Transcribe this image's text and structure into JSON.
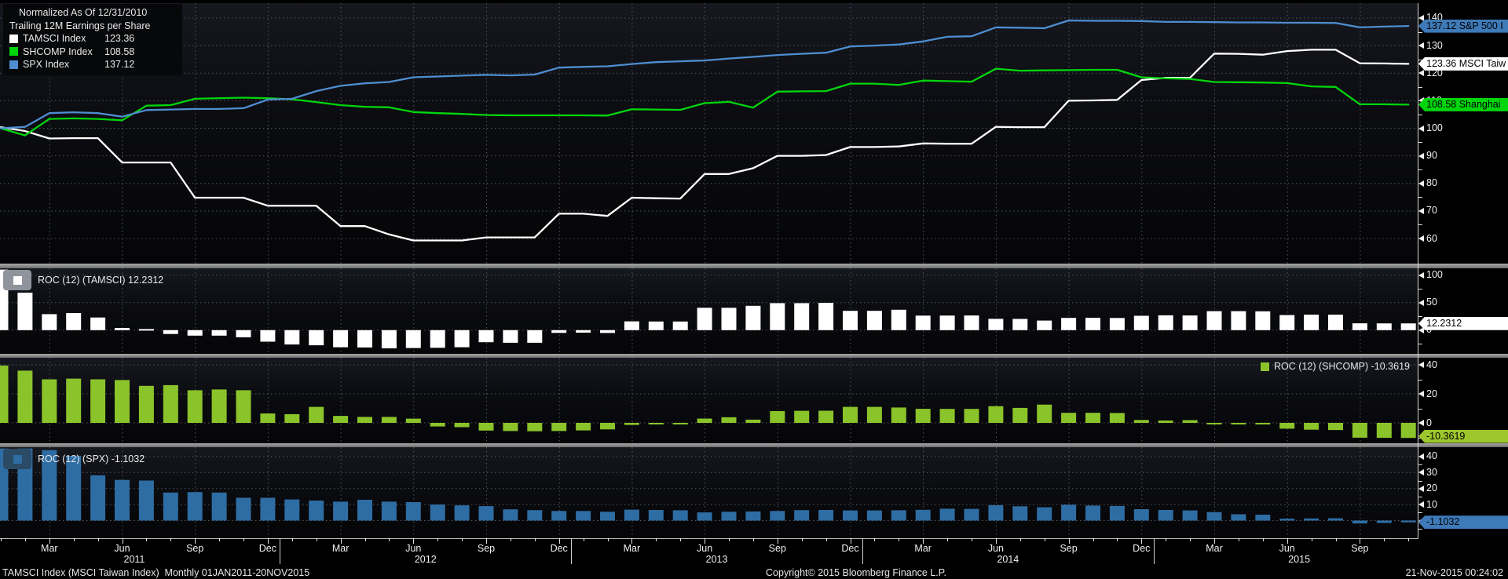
{
  "legend": {
    "title": "Normalized As Of 12/31/2010",
    "subtitle": "Trailing 12M Earnings per Share",
    "items": [
      {
        "name": "TAMSCI Index",
        "value": "123.36",
        "color": "#ffffff"
      },
      {
        "name": "SHCOMP Index",
        "value": "108.58",
        "color": "#00d60b"
      },
      {
        "name": "SPX Index",
        "value": "137.12",
        "color": "#4e8ed0"
      }
    ]
  },
  "panel_legends": [
    {
      "label": "ROC (12) (TAMSCI) 12.2312",
      "color": "#ffffff",
      "chip": "#8e939c"
    },
    {
      "label": "ROC (12) (SHCOMP) -10.3619",
      "color": "#8bc32a",
      "chip": ""
    },
    {
      "label": "ROC (12) (SPX) -1.1032",
      "color": "#2e6da4",
      "chip": "#2b4a66"
    }
  ],
  "x_axis": {
    "quarter_cycle": [
      "Mar",
      "Jun",
      "Sep",
      "Dec"
    ],
    "years": [
      "2011",
      "2012",
      "2013",
      "2014",
      "2015"
    ],
    "range": "Monthly 01JAN2011 - 20NOV2015"
  },
  "status_bar": {
    "left": "TAMSCI Index (MSCI Taiwan Index)  Monthly 01JAN2011-20NOV2015",
    "center": "Copyright© 2015 Bloomberg Finance L.P.",
    "right": "21-Nov-2015 00:24:02"
  },
  "colors": {
    "tamsci_line": "#ffffff",
    "shcomp_line": "#00d60b",
    "spx_line": "#4e8ed0",
    "shcomp_bar": "#8bc32a",
    "spx_bar": "#2e6da4",
    "badge_spx": "#3f7ab8",
    "badge_shcomp": "#00d60b",
    "badge_shcomp_roc": "#9dc62d",
    "grid": "#53555f"
  },
  "chart_data": [
    {
      "type": "line",
      "title": "Normalized As Of 12/31/2010",
      "subtitle": "Trailing 12M Earnings per Share",
      "x_monthly": {
        "start": "2011-01",
        "end": "2015-11",
        "points": 59
      },
      "yticks": [
        140,
        130,
        120,
        110,
        100,
        90,
        80,
        70,
        60
      ],
      "yticks_minor": [
        135,
        125,
        115,
        105,
        95,
        85,
        75,
        65
      ],
      "ylim": [
        51,
        145
      ],
      "series": [
        {
          "name": "TAMSCI Index",
          "color": "#ffffff",
          "last": 123.36,
          "values": [
            100.4,
            99,
            96.3,
            96.4,
            96.4,
            87.6,
            87.6,
            87.6,
            74.8,
            74.8,
            74.8,
            71.9,
            71.9,
            71.9,
            64.5,
            64.5,
            61.5,
            59.3,
            59.3,
            59.3,
            60.4,
            60.4,
            60.4,
            69,
            69,
            68.2,
            74.8,
            74.6,
            74.5,
            83.4,
            83.4,
            85.5,
            90,
            90,
            90.3,
            93.2,
            93.2,
            93.4,
            94.5,
            94.4,
            94.4,
            100.5,
            100.4,
            100.4,
            110,
            110.1,
            110.3,
            117.5,
            118.3,
            118.3,
            127.1,
            127,
            126.7,
            128,
            128.5,
            128.5,
            123.6,
            123.5,
            123.36
          ]
        },
        {
          "name": "SHCOMP Index",
          "color": "#00d60b",
          "last": 108.58,
          "values": [
            100,
            97.4,
            103.4,
            103.6,
            103.4,
            102.9,
            108.2,
            108.4,
            110.7,
            110.9,
            111.1,
            110.9,
            110.5,
            109.5,
            108.4,
            107.8,
            107.6,
            105.9,
            105.5,
            105.2,
            104.8,
            104.7,
            104.7,
            104.7,
            104.7,
            104.6,
            106.9,
            106.8,
            106.7,
            109.1,
            109.6,
            107.5,
            113.3,
            113.4,
            113.5,
            116.2,
            116.2,
            115.7,
            117.3,
            117.1,
            116.9,
            121.6,
            120.9,
            121,
            121.1,
            121.2,
            121.2,
            118.5,
            118.1,
            117.9,
            116.8,
            116.7,
            116.6,
            116.4,
            115.2,
            115,
            108.7,
            108.7,
            108.58
          ]
        },
        {
          "name": "SPX Index",
          "color": "#4e8ed0",
          "last": 137.12,
          "values": [
            100,
            100.5,
            105.5,
            105.8,
            105.5,
            104.2,
            106.6,
            106.8,
            107,
            107,
            107.3,
            110.4,
            110.7,
            113.5,
            115.4,
            116.3,
            116.8,
            118.5,
            118.8,
            119.1,
            119.4,
            119.2,
            119.5,
            122,
            122.3,
            122.5,
            123.3,
            124,
            124.3,
            124.6,
            125.3,
            125.9,
            126.6,
            127,
            127.4,
            129.7,
            130,
            130.4,
            131.5,
            133.2,
            133.4,
            136.6,
            136.5,
            136.3,
            139.1,
            139,
            139,
            138.9,
            138.6,
            138.6,
            138.5,
            138.4,
            138.4,
            138.3,
            138.3,
            138.2,
            136.6,
            136.9,
            137.12
          ]
        }
      ],
      "badges": [
        {
          "value": 137.12,
          "label": "137.12 S&P 500 I",
          "bg": "#3f7ab8"
        },
        {
          "value": 123.36,
          "label": "123.36 MSCI Taiw",
          "bg": "#ffffff"
        },
        {
          "value": 108.58,
          "label": "108.58 Shanghai",
          "bg": "#00d60b"
        }
      ]
    },
    {
      "type": "bar",
      "name": "ROC (12) (TAMSCI)",
      "color": "#ffffff",
      "yticks": [
        100,
        50,
        0
      ],
      "yticks_minor": [
        75,
        25,
        -25
      ],
      "badge": {
        "value": 12.2312,
        "label": "12.2312",
        "bg": "#ffffff"
      },
      "values": [
        110,
        68,
        29,
        31,
        23,
        4,
        2,
        -7,
        -10,
        -10,
        -13,
        -21,
        -26,
        -27.5,
        -31,
        -31.5,
        -33,
        -32.5,
        -32,
        -31,
        -22,
        -23,
        -23,
        -5,
        -4.5,
        -5.1,
        16,
        15.7,
        15.6,
        40.6,
        40.6,
        44.2,
        49,
        49,
        49.5,
        35.1,
        35.1,
        37,
        26.3,
        26.5,
        26.7,
        20.5,
        20.4,
        17.4,
        22.2,
        22.3,
        22.1,
        26.1,
        26.9,
        26.7,
        34.5,
        34.5,
        34.2,
        27.4,
        28,
        28,
        12.4,
        12.3,
        12.2312
      ]
    },
    {
      "type": "bar",
      "name": "ROC (12) (SHCOMP)",
      "color": "#8bc32a",
      "yticks": [
        40,
        20,
        0
      ],
      "yticks_minor": [
        30,
        10,
        -10
      ],
      "badge": {
        "value": -10.3619,
        "label": "-10.3619",
        "bg": "#9dc62d"
      },
      "values": [
        39.5,
        36,
        30,
        30.5,
        30,
        29.5,
        25.5,
        26,
        22.5,
        23,
        22.5,
        6.5,
        6,
        11,
        4.8,
        4.1,
        4.1,
        2.9,
        -2.5,
        -3,
        -5.3,
        -5.6,
        -5.8,
        -5.6,
        -5.2,
        -4.5,
        -1.4,
        -0.9,
        -0.8,
        3,
        3.9,
        2.2,
        8.1,
        8.3,
        8.4,
        11,
        11,
        10.6,
        9.7,
        9.6,
        9.6,
        11.5,
        10.3,
        12.6,
        6.9,
        6.9,
        6.8,
        2,
        1.6,
        1.9,
        -0.4,
        -0.3,
        -0.2,
        -4,
        -4.7,
        -4.9,
        -10.2,
        -10.3,
        -10.3619
      ]
    },
    {
      "type": "bar",
      "name": "ROC (12) (SPX)",
      "color": "#2e6da4",
      "yticks": [
        40,
        30,
        20,
        10,
        0
      ],
      "yticks_minor": [
        45,
        35,
        25,
        15,
        5,
        -5
      ],
      "badge": {
        "value": -1.1032,
        "label": "-1.1032",
        "bg": "#3f7ab8"
      },
      "values": [
        45,
        45,
        44,
        40.5,
        28.3,
        25.4,
        25,
        17.5,
        17.8,
        17.5,
        14.2,
        14.2,
        13.2,
        12.5,
        11.8,
        13,
        11.8,
        11.5,
        10,
        9.5,
        9,
        7,
        6.5,
        6,
        6,
        5.5,
        6.8,
        6.6,
        6.4,
        5.1,
        5.5,
        5.7,
        6,
        6.5,
        6.6,
        6.3,
        6.3,
        6.4,
        6.7,
        7.4,
        7.3,
        9.6,
        8.9,
        8.3,
        9.9,
        9.4,
        9.1,
        7.1,
        6.6,
        6.3,
        5.3,
        3.9,
        3.7,
        1.2,
        1.3,
        1.4,
        -1.8,
        -1.5,
        -1.1032
      ]
    }
  ]
}
